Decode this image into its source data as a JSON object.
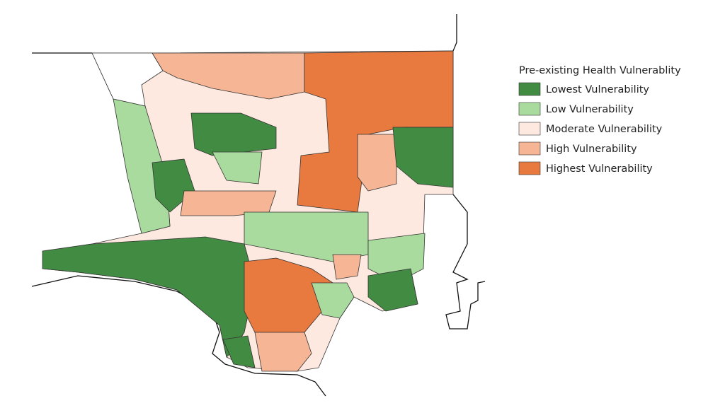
{
  "legend": {
    "title": "Pre-existing Health Vulnerablity",
    "items": [
      {
        "label": "Lowest Vulnerability",
        "color": "#428b43"
      },
      {
        "label": "Low Vulnerability",
        "color": "#a9da9e"
      },
      {
        "label": "Moderate Vulnerability",
        "color": "#fde9df"
      },
      {
        "label": "High Vulnerability",
        "color": "#f6b696"
      },
      {
        "label": "Highest Vulnerability",
        "color": "#e8793f"
      }
    ]
  }
}
